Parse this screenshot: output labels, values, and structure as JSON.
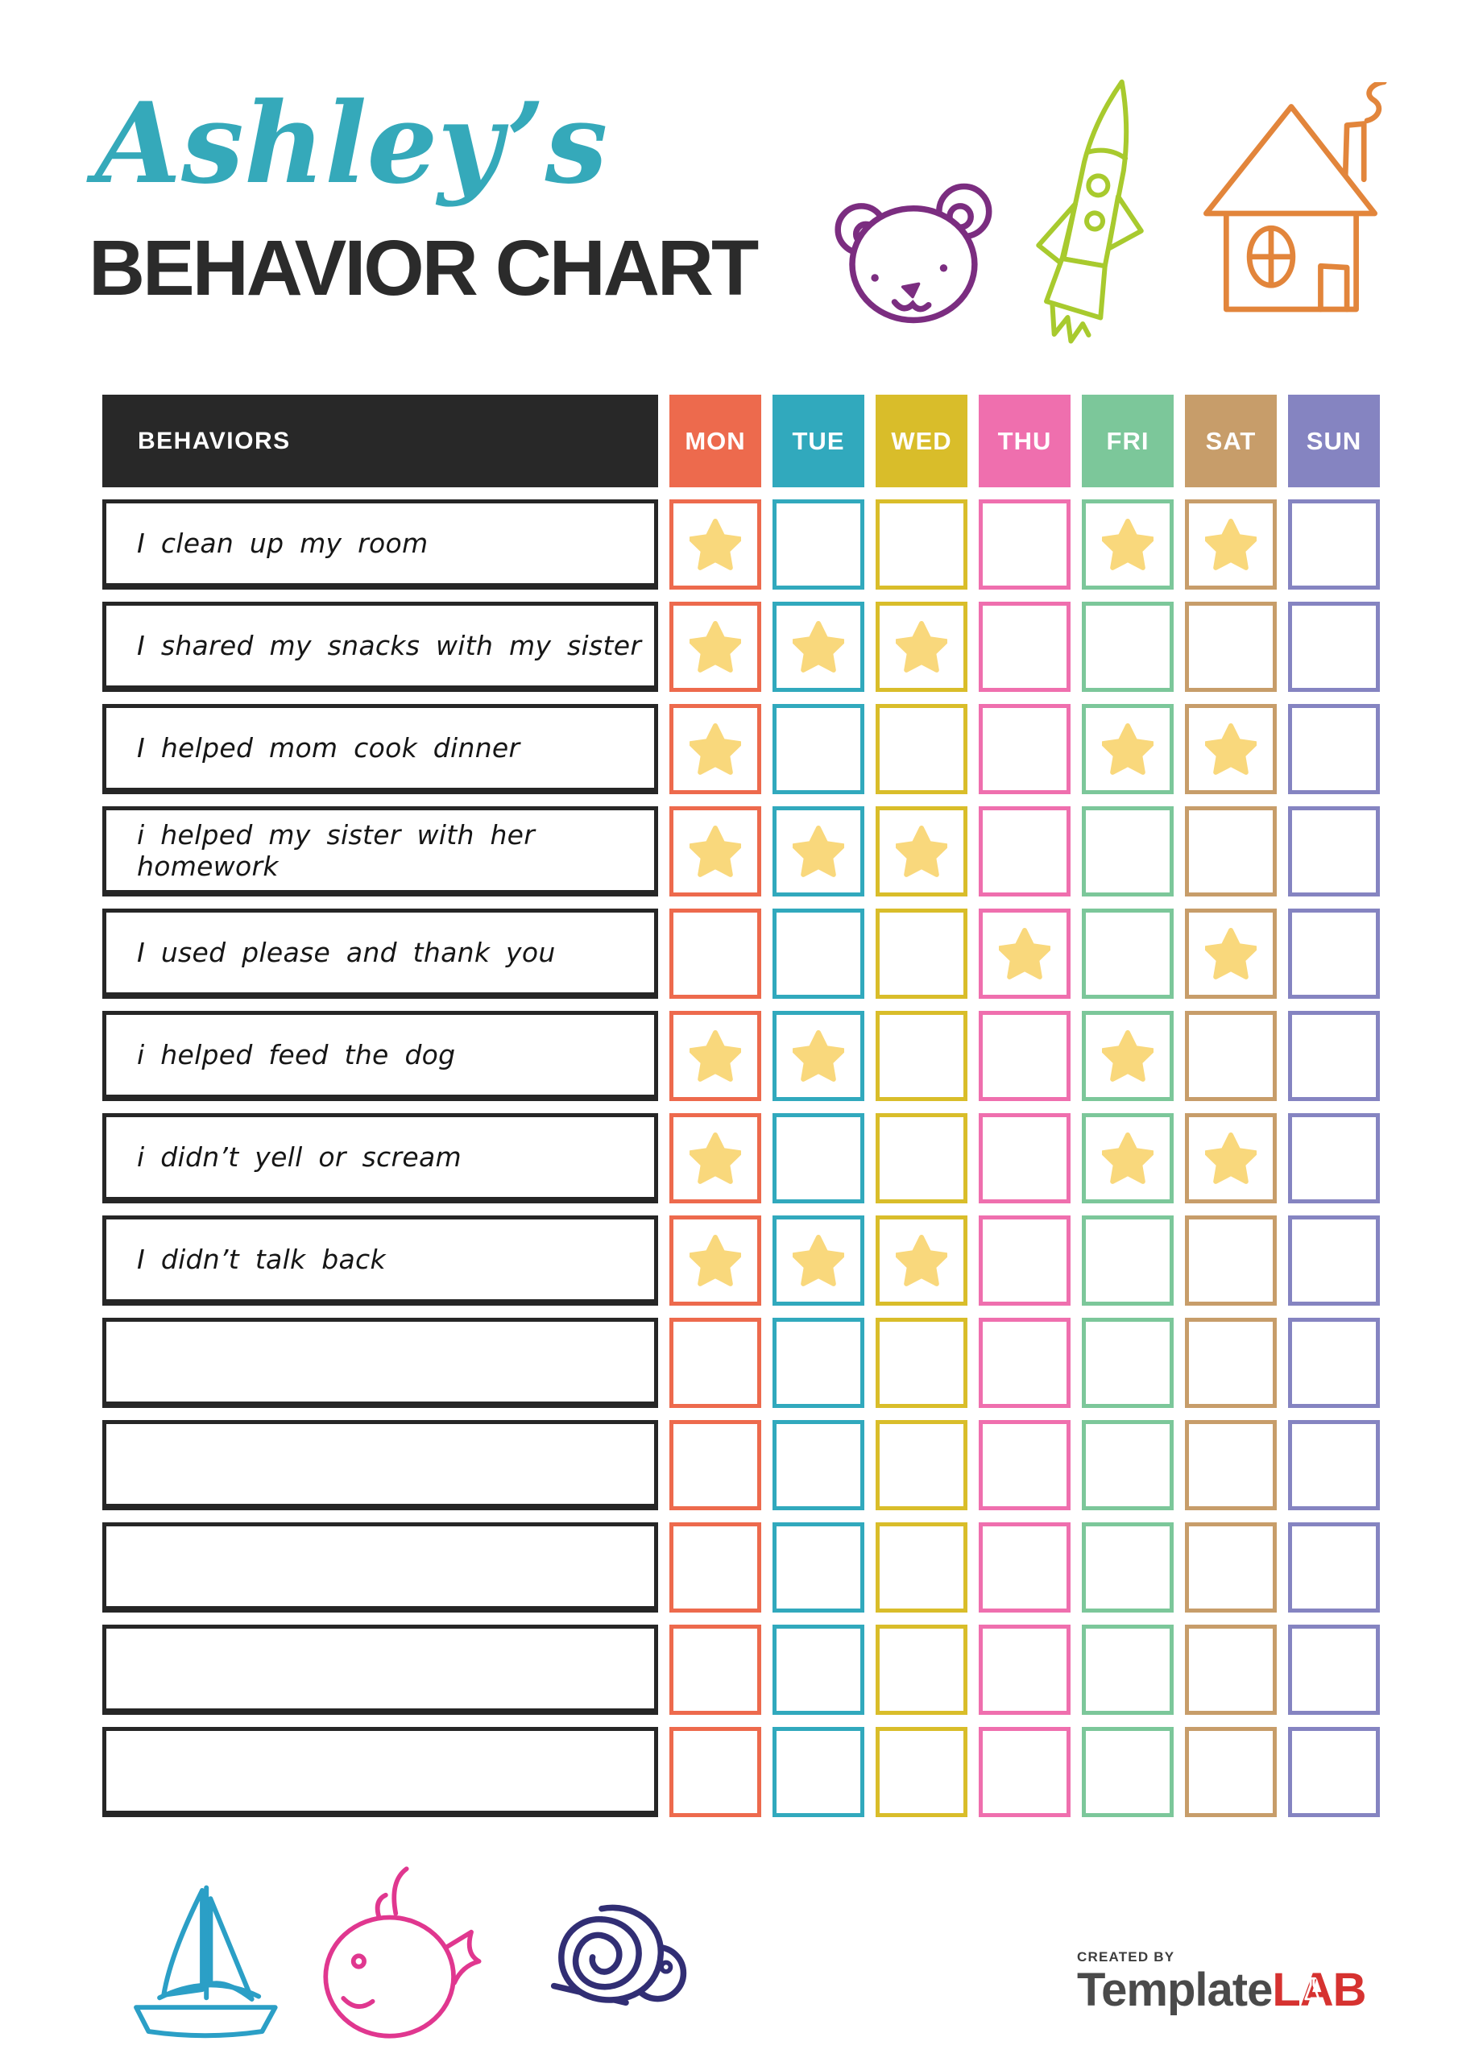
{
  "header": {
    "name_script": "Ashley’s",
    "title": "BEHAVIOR CHART",
    "accent_color": "#35a9ba",
    "title_color": "#2b2b2b"
  },
  "table": {
    "behaviors_header": "BEHAVIORS",
    "header_bg": "#282828",
    "star_color": "#f9d87c",
    "days": [
      {
        "label": "MON",
        "color": "#ed6a4d"
      },
      {
        "label": "TUE",
        "color": "#31a9bd"
      },
      {
        "label": "WED",
        "color": "#d9bd2a"
      },
      {
        "label": "THU",
        "color": "#ef6fae"
      },
      {
        "label": "FRI",
        "color": "#7cc79a"
      },
      {
        "label": "SAT",
        "color": "#c79d6a"
      },
      {
        "label": "SUN",
        "color": "#8584c1"
      }
    ],
    "rows": [
      {
        "label": "I clean up my room",
        "stars": [
          1,
          0,
          0,
          0,
          1,
          1,
          0
        ]
      },
      {
        "label": "I shared my snacks with my sister",
        "stars": [
          1,
          1,
          1,
          0,
          0,
          0,
          0
        ]
      },
      {
        "label": "I helped mom cook dinner",
        "stars": [
          1,
          0,
          0,
          0,
          1,
          1,
          0
        ]
      },
      {
        "label": "i helped my sister with her homework",
        "stars": [
          1,
          1,
          1,
          0,
          0,
          0,
          0
        ]
      },
      {
        "label": "I used please and thank you",
        "stars": [
          0,
          0,
          0,
          1,
          0,
          1,
          0
        ]
      },
      {
        "label": "i helped feed the dog",
        "stars": [
          1,
          1,
          0,
          0,
          1,
          0,
          0
        ]
      },
      {
        "label": "i didn’t yell or scream",
        "stars": [
          1,
          0,
          0,
          0,
          1,
          1,
          0
        ]
      },
      {
        "label": "I didn’t talk back",
        "stars": [
          1,
          1,
          1,
          0,
          0,
          0,
          0
        ]
      },
      {
        "label": "",
        "stars": [
          0,
          0,
          0,
          0,
          0,
          0,
          0
        ]
      },
      {
        "label": "",
        "stars": [
          0,
          0,
          0,
          0,
          0,
          0,
          0
        ]
      },
      {
        "label": "",
        "stars": [
          0,
          0,
          0,
          0,
          0,
          0,
          0
        ]
      },
      {
        "label": "",
        "stars": [
          0,
          0,
          0,
          0,
          0,
          0,
          0
        ]
      },
      {
        "label": "",
        "stars": [
          0,
          0,
          0,
          0,
          0,
          0,
          0
        ]
      }
    ]
  },
  "decorations": {
    "top": [
      {
        "icon": "bear-icon",
        "color": "#7b2d80"
      },
      {
        "icon": "rocket-icon",
        "color": "#a8ca2e"
      },
      {
        "icon": "house-icon",
        "color": "#e2853b"
      }
    ],
    "bottom": [
      {
        "icon": "sailboat-icon",
        "color": "#2b9fc6"
      },
      {
        "icon": "whale-icon",
        "color": "#e0378f"
      },
      {
        "icon": "snail-icon",
        "color": "#312e74"
      }
    ]
  },
  "footer": {
    "created_by": "CREATED BY",
    "brand_dark": "Template",
    "brand_red": "LAB",
    "brand_dark_color": "#4a4a4a",
    "brand_red_color": "#d63230"
  }
}
